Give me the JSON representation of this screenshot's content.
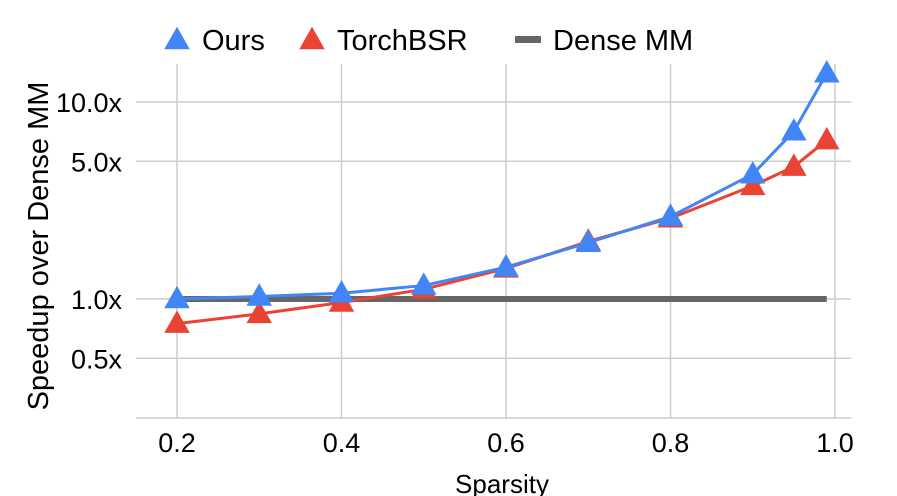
{
  "chart_data": {
    "type": "line",
    "title": "",
    "xlabel": "Sparsity",
    "ylabel": "Speedup over Dense MM",
    "yscale": "log",
    "xlim": [
      0.2,
      1.0
    ],
    "ylim": [
      0.25,
      14
    ],
    "grid": true,
    "legend_position": "top",
    "x_ticks": [
      "0.2",
      "0.4",
      "0.6",
      "0.8",
      "1.0"
    ],
    "y_ticks": [
      {
        "value": 0.5,
        "label": "0.5x"
      },
      {
        "value": 1.0,
        "label": "1.0x"
      },
      {
        "value": 5.0,
        "label": "5.0x"
      },
      {
        "value": 10.0,
        "label": "10.0x"
      }
    ],
    "series": [
      {
        "name": "Ours",
        "color": "#4285f4",
        "marker": "triangle",
        "x": [
          0.2,
          0.3,
          0.4,
          0.5,
          0.6,
          0.7,
          0.8,
          0.9,
          0.95,
          0.99
        ],
        "values": [
          1.0,
          1.03,
          1.07,
          1.17,
          1.45,
          1.93,
          2.62,
          4.3,
          7.1,
          14.0
        ]
      },
      {
        "name": "TorchBSR",
        "color": "#ea4335",
        "marker": "triangle",
        "x": [
          0.2,
          0.3,
          0.4,
          0.5,
          0.6,
          0.7,
          0.8,
          0.9,
          0.95,
          0.99
        ],
        "values": [
          0.75,
          0.84,
          0.96,
          1.12,
          1.43,
          1.96,
          2.57,
          3.75,
          4.7,
          6.4
        ]
      },
      {
        "name": "Dense MM",
        "color": "#666666",
        "marker": "none",
        "x": [
          0.2,
          0.99
        ],
        "values": [
          1.0,
          1.0
        ]
      }
    ]
  }
}
